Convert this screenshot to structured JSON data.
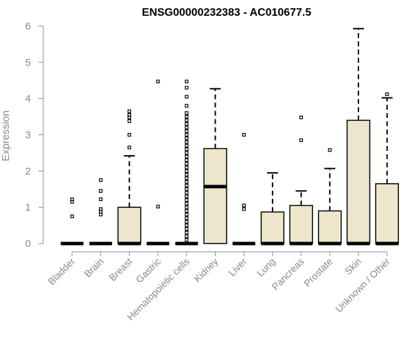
{
  "chart_data": {
    "type": "boxplot",
    "title": "ENSG00000232383 - AC010677.5",
    "ylabel": "Expression",
    "xlabel": "",
    "ylim": [
      0,
      6
    ],
    "yticks": [
      0,
      1,
      2,
      3,
      4,
      5,
      6
    ],
    "box_fill": "#ede6cc",
    "categories": [
      "Bladder",
      "Brain",
      "Breast",
      "Gastric",
      "Hematopoietic cells",
      "Kidney",
      "Liver",
      "Lung",
      "Pancreas",
      "Prostate",
      "Skin",
      "Unknown / Other"
    ],
    "boxes": [
      {
        "q1": 0,
        "median": 0,
        "q3": 0,
        "whisker_low": 0,
        "whisker_high": 0,
        "outliers": [
          0.75,
          1.15,
          1.22
        ]
      },
      {
        "q1": 0,
        "median": 0,
        "q3": 0,
        "whisker_low": 0,
        "whisker_high": 0,
        "outliers": [
          0.8,
          0.88,
          0.95,
          1.22,
          1.45,
          1.75
        ]
      },
      {
        "q1": 0,
        "median": 0,
        "q3": 1.0,
        "whisker_low": 0,
        "whisker_high": 2.42,
        "outliers": [
          2.65,
          3.0,
          3.38,
          3.48,
          3.55,
          3.65
        ]
      },
      {
        "q1": 0,
        "median": 0,
        "q3": 0,
        "whisker_low": 0,
        "whisker_high": 0,
        "outliers": [
          1.02,
          4.47
        ]
      },
      {
        "q1": 0,
        "median": 0,
        "q3": 0,
        "whisker_low": 0,
        "whisker_high": 0,
        "outliers": [
          0.1,
          0.2,
          0.3,
          0.4,
          0.5,
          0.6,
          0.7,
          0.8,
          0.9,
          1.0,
          1.1,
          1.2,
          1.3,
          1.4,
          1.5,
          1.6,
          1.7,
          1.8,
          1.9,
          2.0,
          2.1,
          2.2,
          2.3,
          2.4,
          2.5,
          2.6,
          2.7,
          2.8,
          2.9,
          3.0,
          3.1,
          3.2,
          3.3,
          3.4,
          3.5,
          3.6,
          3.8,
          4.05,
          4.3,
          4.47
        ]
      },
      {
        "q1": 0,
        "median": 1.57,
        "q3": 2.62,
        "whisker_low": 0,
        "whisker_high": 4.27,
        "outliers": []
      },
      {
        "q1": 0,
        "median": 0,
        "q3": 0,
        "whisker_low": 0,
        "whisker_high": 0,
        "outliers": [
          0.95,
          1.05,
          3.0
        ]
      },
      {
        "q1": 0,
        "median": 0,
        "q3": 0.87,
        "whisker_low": 0,
        "whisker_high": 1.95,
        "outliers": []
      },
      {
        "q1": 0,
        "median": 0,
        "q3": 1.05,
        "whisker_low": 0,
        "whisker_high": 1.45,
        "outliers": [
          2.85,
          3.48
        ]
      },
      {
        "q1": 0,
        "median": 0,
        "q3": 0.9,
        "whisker_low": 0,
        "whisker_high": 2.07,
        "outliers": [
          2.58
        ]
      },
      {
        "q1": 0,
        "median": 0,
        "q3": 3.4,
        "whisker_low": 0,
        "whisker_high": 5.93,
        "outliers": []
      },
      {
        "q1": 0,
        "median": 0,
        "q3": 1.65,
        "whisker_low": 0,
        "whisker_high": 4.02,
        "outliers": [
          4.12
        ]
      }
    ]
  }
}
